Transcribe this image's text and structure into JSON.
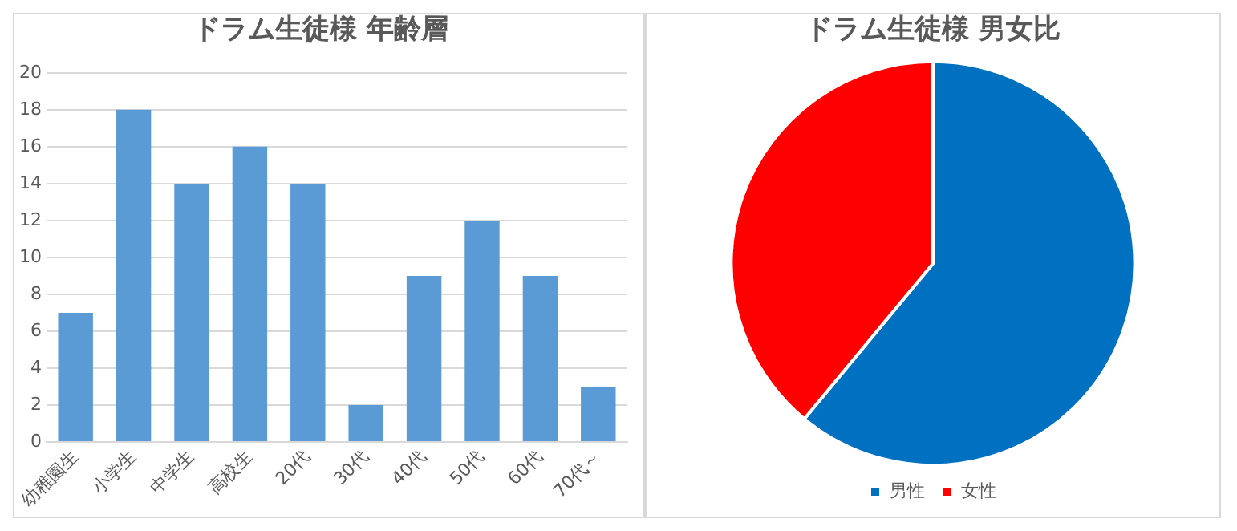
{
  "chart_data": [
    {
      "type": "bar",
      "title": "ドラム生徒様 年齢層",
      "categories": [
        "幼稚園生",
        "小学生",
        "中学生",
        "高校生",
        "20代",
        "30代",
        "40代",
        "50代",
        "60代",
        "70代～"
      ],
      "values": [
        7,
        18,
        14,
        16,
        14,
        2,
        9,
        12,
        9,
        3
      ],
      "color": "#5b9bd5",
      "ylim": [
        0,
        20
      ],
      "yticks": [
        0,
        2,
        4,
        6,
        8,
        10,
        12,
        14,
        16,
        18,
        20
      ],
      "grid": "y",
      "legend": false
    },
    {
      "type": "pie",
      "title": "ドラム生徒様 男女比",
      "categories": [
        "男性",
        "女性"
      ],
      "values": [
        61,
        39
      ],
      "colors": [
        "#0070c0",
        "#ff0000"
      ],
      "legend": "bottom"
    }
  ]
}
